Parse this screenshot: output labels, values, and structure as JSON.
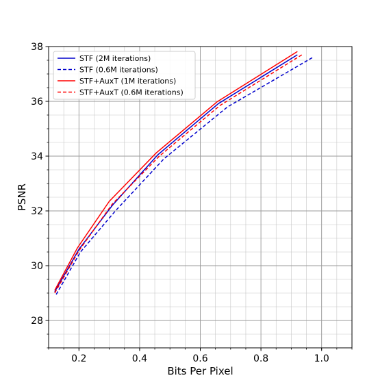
{
  "chart_data": {
    "type": "line",
    "xlabel": "Bits Per Pixel",
    "ylabel": "PSNR",
    "xlim": [
      0.1,
      1.1
    ],
    "ylim": [
      27.0,
      38.0
    ],
    "x_ticks": [
      0.2,
      0.4,
      0.6,
      0.8,
      1.0
    ],
    "x_tick_labels": [
      "0.2",
      "0.4",
      "0.6",
      "0.8",
      "1.0"
    ],
    "y_ticks": [
      28,
      30,
      32,
      34,
      36,
      38
    ],
    "y_tick_labels": [
      "28",
      "30",
      "32",
      "34",
      "36",
      "38"
    ],
    "grid": true,
    "minor_grid": true,
    "legend_position": "top-left",
    "series": [
      {
        "name": "STF (2M iterations)",
        "color": "#0000cc",
        "style": "solid",
        "x": [
          0.12,
          0.2,
          0.31,
          0.46,
          0.66,
          0.92
        ],
        "y": [
          29.05,
          30.6,
          32.2,
          34.05,
          35.92,
          37.7
        ]
      },
      {
        "name": "STF (0.6M iterations)",
        "color": "#0000cc",
        "style": "dashed",
        "x": [
          0.125,
          0.205,
          0.32,
          0.48,
          0.69,
          0.97
        ],
        "y": [
          28.95,
          30.5,
          32.0,
          33.9,
          35.8,
          37.6
        ]
      },
      {
        "name": "STF+AuxT (1M iterations)",
        "color": "#ff0000",
        "style": "solid",
        "x": [
          0.12,
          0.195,
          0.3,
          0.455,
          0.655,
          0.92
        ],
        "y": [
          29.1,
          30.65,
          32.35,
          34.12,
          35.98,
          37.82
        ]
      },
      {
        "name": "STF+AuxT (0.6M iterations)",
        "color": "#ff0000",
        "style": "dashed",
        "x": [
          0.12,
          0.2,
          0.31,
          0.465,
          0.665,
          0.935
        ],
        "y": [
          29.0,
          30.55,
          32.25,
          34.0,
          35.85,
          37.7
        ]
      }
    ]
  }
}
